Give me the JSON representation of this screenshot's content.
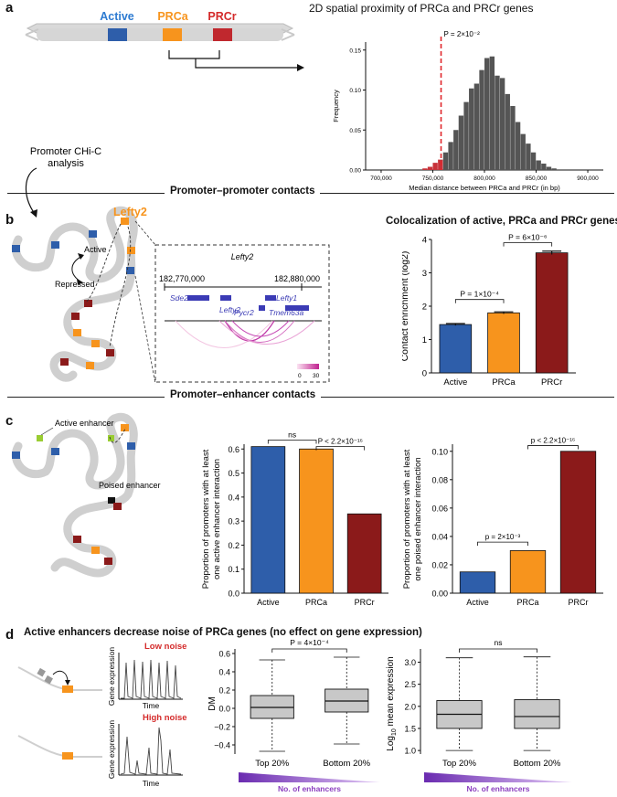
{
  "panel_labels": {
    "a": "a",
    "b": "b",
    "c": "c",
    "d": "d"
  },
  "colors": {
    "active": "#2e5eaa",
    "prca": "#f7941d",
    "prcr": "#8b1a1a",
    "pink": "#cc3399",
    "gray": "#555555",
    "purple": "#8b3fbf"
  },
  "a": {
    "gene_labels": {
      "active": "Active",
      "prca": "PRCa",
      "prcr": "PRCr"
    },
    "histogram_title": "2D spatial proximity of PRCa and PRCr genes",
    "p_value_label": "P = 2×10⁻²",
    "side_label": "Promoter CHi-C\nanalysis",
    "side_label_line1": "Promoter CHi-C",
    "side_label_line2": "analysis"
  },
  "section_titles": {
    "pp": "Promoter–promoter contacts",
    "pe": "Promoter–enhancer contacts"
  },
  "b": {
    "lefty_label": "Lefty2",
    "active_label": "Active",
    "repressed_label": "Repressed",
    "inset_title": "Lefty2",
    "coord_left": "182,770,000",
    "coord_right": "182,880,000",
    "genes": [
      "Sde2",
      "Lefty2",
      "Pycr2",
      "Lefty1",
      "Tmem63a"
    ],
    "scale_min": "0",
    "scale_max": "30",
    "chart_title": "Colocalization of active, PRCa and PRCr genes",
    "p1": "P = 1×10⁻⁴",
    "p2": "P = 6×10⁻⁶"
  },
  "c": {
    "active_enhancer_label": "Active enhancer",
    "poised_enhancer_label": "Poised enhancer",
    "ns": "ns",
    "p_left": "P < 2.2×10⁻¹⁶",
    "p_right_top": "p < 2.2×10⁻¹⁶",
    "p_right_low": "p = 2×10⁻³"
  },
  "d": {
    "title": "Active enhancers decrease noise of PRCa genes (no effect on gene expression)",
    "low_noise": "Low noise",
    "high_noise": "High noise",
    "trace_ylabel": "Gene expression",
    "trace_xlabel": "Time",
    "p_dm": "P = 4×10⁻⁴",
    "ns": "ns",
    "enhancers_label": "No. of enhancers"
  },
  "chart_data": [
    {
      "id": "a-histogram",
      "type": "histogram",
      "title": "2D spatial proximity of PRCa and PRCr genes",
      "xlabel": "Median distance between PRCa and PRCr (in bp)",
      "ylabel": "Frequency",
      "xlim": [
        685000,
        915000
      ],
      "ylim": [
        0,
        0.16
      ],
      "xticks": [
        700000,
        750000,
        800000,
        850000,
        900000
      ],
      "xtick_labels": [
        "700,000",
        "750,000",
        "800,000",
        "850,000",
        "900,000"
      ],
      "yticks": [
        0.0,
        0.05,
        0.1,
        0.15
      ],
      "ytick_labels": [
        "0.00",
        "0.05",
        "0.10",
        "0.15"
      ],
      "bin_width": 5000,
      "bin_starts": [
        740000,
        745000,
        750000,
        755000,
        760000,
        765000,
        770000,
        775000,
        780000,
        785000,
        790000,
        795000,
        800000,
        805000,
        810000,
        815000,
        820000,
        825000,
        830000,
        835000,
        840000,
        845000,
        850000,
        855000,
        860000,
        865000
      ],
      "values": [
        0.002,
        0.004,
        0.009,
        0.013,
        0.022,
        0.035,
        0.05,
        0.068,
        0.085,
        0.102,
        0.108,
        0.125,
        0.14,
        0.142,
        0.118,
        0.115,
        0.095,
        0.08,
        0.06,
        0.045,
        0.033,
        0.022,
        0.012,
        0.008,
        0.004,
        0.002
      ],
      "observed_line": 758000
    },
    {
      "id": "b-bar",
      "type": "bar",
      "categories": [
        "Active",
        "PRCa",
        "PRCr"
      ],
      "values": [
        1.45,
        1.8,
        3.6
      ],
      "errors": [
        0.03,
        0.03,
        0.05
      ],
      "ylabel": "Contact enrichment (log2)",
      "ylim": [
        0,
        4
      ],
      "yticks": [
        0,
        1,
        2,
        3,
        4
      ]
    },
    {
      "id": "c-bar-active",
      "type": "bar",
      "categories": [
        "Active",
        "PRCa",
        "PRCr"
      ],
      "values": [
        0.61,
        0.6,
        0.33
      ],
      "ylabel": "Proportion of promoters with at least one active enhancer interaction",
      "ylabel_line1": "Proportion of promoters with at least",
      "ylabel_line2": "one active enhancer interaction",
      "ylim": [
        0,
        0.62
      ],
      "yticks": [
        0.0,
        0.1,
        0.2,
        0.3,
        0.4,
        0.5,
        0.6
      ],
      "ytick_labels": [
        "0.0",
        "0.1",
        "0.2",
        "0.3",
        "0.4",
        "0.5",
        "0.6"
      ]
    },
    {
      "id": "c-bar-poised",
      "type": "bar",
      "categories": [
        "Active",
        "PRCa",
        "PRCr"
      ],
      "values": [
        0.015,
        0.03,
        0.1
      ],
      "ylabel": "Proportion of promoters with at least one poised enhancer interaction",
      "ylabel_line1": "Proportion of promoters with at least",
      "ylabel_line2": "one poised enhancer interaction",
      "ylim": [
        0,
        0.105
      ],
      "yticks": [
        0.0,
        0.02,
        0.04,
        0.06,
        0.08,
        0.1
      ],
      "ytick_labels": [
        "0.00",
        "0.02",
        "0.04",
        "0.06",
        "0.08",
        "0.10"
      ]
    },
    {
      "id": "d-box-dm",
      "type": "box",
      "categories": [
        "Top 20%",
        "Bottom 20%"
      ],
      "ylabel": "DM",
      "ylim": [
        -0.5,
        0.65
      ],
      "yticks": [
        -0.4,
        -0.2,
        0.0,
        0.2,
        0.4,
        0.6
      ],
      "ytick_labels": [
        "−0.4",
        "−0.2",
        "0.0",
        "0.2",
        "0.4",
        "0.6"
      ],
      "boxes": [
        {
          "min": -0.47,
          "q1": -0.11,
          "median": 0.01,
          "q3": 0.14,
          "max": 0.53
        },
        {
          "min": -0.39,
          "q1": -0.04,
          "median": 0.08,
          "q3": 0.21,
          "max": 0.56
        }
      ]
    },
    {
      "id": "d-box-expr",
      "type": "box",
      "categories": [
        "Top 20%",
        "Bottom 20%"
      ],
      "ylabel": "Log10 mean expression",
      "ylabel_main": "Log",
      "ylabel_sub": "10",
      "ylabel_rest": " mean expression",
      "ylim": [
        0.92,
        3.3
      ],
      "yticks": [
        1.0,
        1.5,
        2.0,
        2.5,
        3.0
      ],
      "ytick_labels": [
        "1.0",
        "1.5",
        "2.0",
        "2.5",
        "3.0"
      ],
      "boxes": [
        {
          "min": 1.0,
          "q1": 1.5,
          "median": 1.82,
          "q3": 2.13,
          "max": 3.1
        },
        {
          "min": 1.0,
          "q1": 1.5,
          "median": 1.77,
          "q3": 2.15,
          "max": 3.12
        }
      ]
    }
  ]
}
